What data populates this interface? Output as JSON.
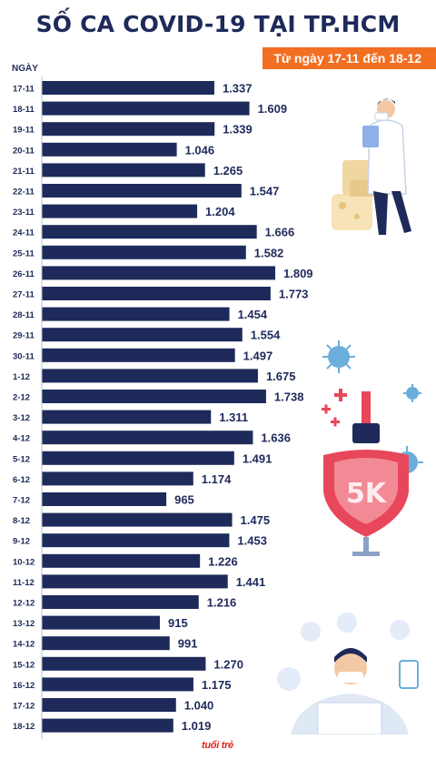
{
  "header": {
    "title": "SỐ CA COVID-19 TẠI TP.HCM",
    "subtitle": "Từ ngày 17-11 đến 18-12"
  },
  "colors": {
    "bar": "#1e2a5a",
    "accent": "#f26f21",
    "text": "#1e2a5a"
  },
  "logo_text": "tuổi trẻ",
  "chart_data": {
    "type": "bar",
    "orientation": "horizontal",
    "ylabel": "NGÀY",
    "categories": [
      "17-11",
      "18-11",
      "19-11",
      "20-11",
      "21-11",
      "22-11",
      "23-11",
      "24-11",
      "25-11",
      "26-11",
      "27-11",
      "28-11",
      "29-11",
      "30-11",
      "1-12",
      "2-12",
      "3-12",
      "4-12",
      "5-12",
      "6-12",
      "7-12",
      "8-12",
      "9-12",
      "10-12",
      "11-12",
      "12-12",
      "13-12",
      "14-12",
      "15-12",
      "16-12",
      "17-12",
      "18-12"
    ],
    "values": [
      1337,
      1609,
      1339,
      1046,
      1265,
      1547,
      1204,
      1666,
      1582,
      1809,
      1773,
      1454,
      1554,
      1497,
      1675,
      1738,
      1311,
      1636,
      1491,
      1174,
      965,
      1475,
      1453,
      1226,
      1441,
      1216,
      915,
      991,
      1270,
      1175,
      1040,
      1019
    ],
    "value_labels": [
      "1.337",
      "1.609",
      "1.339",
      "1.046",
      "1.265",
      "1.547",
      "1.204",
      "1.666",
      "1.582",
      "1.809",
      "1.773",
      "1.454",
      "1.554",
      "1.497",
      "1.675",
      "1.738",
      "1.311",
      "1.636",
      "1.491",
      "1.174",
      "965",
      "1.475",
      "1.453",
      "1.226",
      "1.441",
      "1.216",
      "915",
      "991",
      "1.270",
      "1.175",
      "1.040",
      "1.019"
    ],
    "grid": false,
    "legend": "none"
  }
}
